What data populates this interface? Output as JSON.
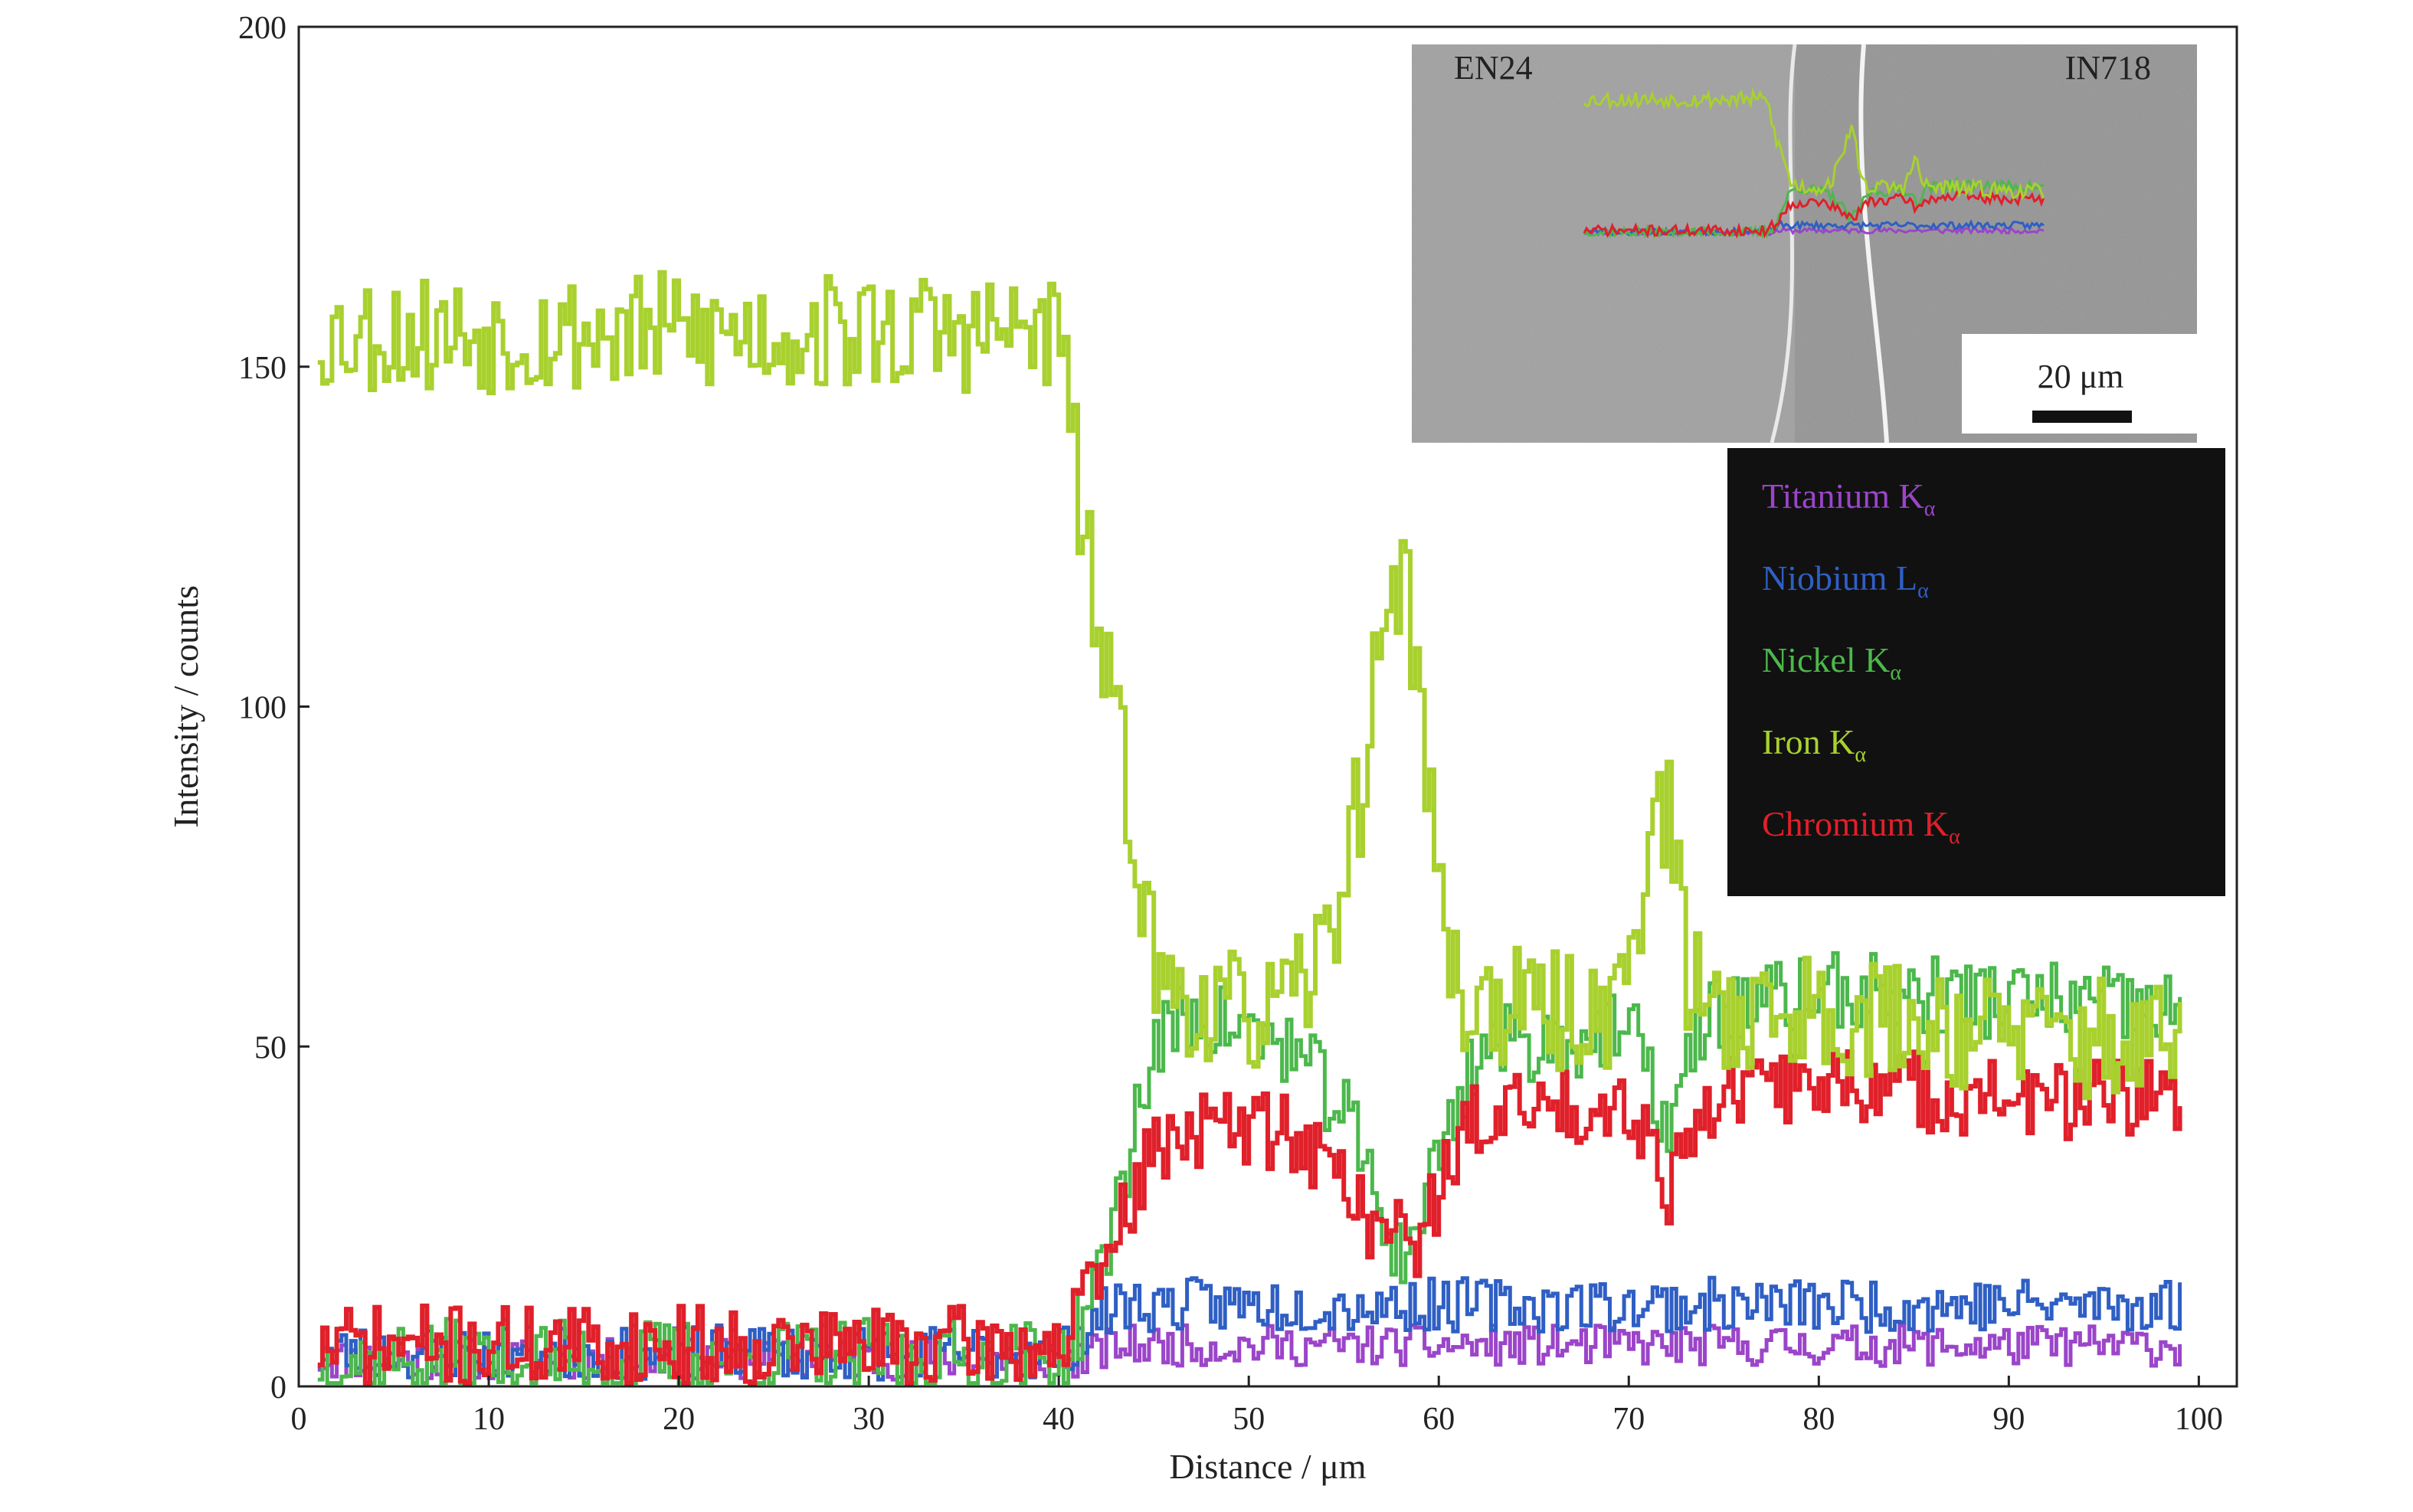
{
  "chart_data": {
    "type": "line",
    "title": "",
    "xlabel": "Distance / μm",
    "ylabel": "Intensity / counts",
    "xlim": [
      0,
      102
    ],
    "ylim": [
      0,
      200
    ],
    "xticks": [
      0,
      10,
      20,
      30,
      40,
      50,
      60,
      70,
      80,
      90,
      100
    ],
    "yticks": [
      0,
      50,
      100,
      150,
      200
    ],
    "grid": false,
    "legend_position": "right, below inset",
    "legend_background": "#111111",
    "series": [
      {
        "name": "Titanium Kα",
        "base": "Titanium K",
        "sub": "α",
        "color": "#9b45c9",
        "width": 5,
        "x": [
          1,
          41,
          43,
          99
        ],
        "y": [
          4,
          4,
          6,
          6
        ],
        "noise": 3,
        "seed": 11
      },
      {
        "name": "Niobium Lα",
        "base": "Niobium L",
        "sub": "α",
        "color": "#2f5fc4",
        "width": 5,
        "x": [
          1,
          40,
          42,
          43,
          99
        ],
        "y": [
          5,
          5,
          10,
          12,
          12
        ],
        "noise": 4,
        "seed": 23
      },
      {
        "name": "Nickel Kα",
        "base": "Nickel K",
        "sub": "α",
        "color": "#4cb84c",
        "width": 5,
        "x": [
          1,
          40,
          42,
          44,
          45,
          47,
          52,
          55,
          57,
          58,
          60,
          62,
          70,
          72,
          74,
          80,
          90,
          99
        ],
        "y": [
          4,
          4,
          15,
          40,
          50,
          55,
          50,
          40,
          25,
          18,
          35,
          50,
          52,
          38,
          55,
          58,
          57,
          55
        ],
        "noise": 6,
        "seed": 37
      },
      {
        "name": "Iron Kα",
        "base": "Iron K",
        "sub": "α",
        "color": "#a8d12f",
        "width": 6,
        "x": [
          1,
          40,
          41,
          42,
          43,
          44,
          45,
          48,
          52,
          54,
          56,
          57,
          58,
          59,
          60,
          61,
          65,
          69,
          70,
          71,
          72,
          73,
          75,
          80,
          90,
          99
        ],
        "y": [
          155,
          155,
          130,
          110,
          95,
          80,
          60,
          55,
          55,
          65,
          90,
          115,
          120,
          100,
          70,
          57,
          55,
          55,
          65,
          80,
          85,
          60,
          55,
          55,
          52,
          50
        ],
        "noise": 9,
        "seed": 53
      },
      {
        "name": "Chromium Kα",
        "base": "Chromium K",
        "sub": "α",
        "color": "#e0202a",
        "width": 6,
        "x": [
          1,
          40,
          42,
          44,
          46,
          52,
          55,
          57,
          59,
          60,
          62,
          70,
          72,
          74,
          80,
          90,
          99
        ],
        "y": [
          6,
          6,
          15,
          30,
          38,
          38,
          30,
          22,
          22,
          30,
          40,
          42,
          30,
          42,
          45,
          42,
          42
        ],
        "noise": 6,
        "seed": 71
      }
    ]
  },
  "inset": {
    "left_label": "EN24",
    "right_label": "IN718",
    "scale_bar_label": "20 μm"
  }
}
